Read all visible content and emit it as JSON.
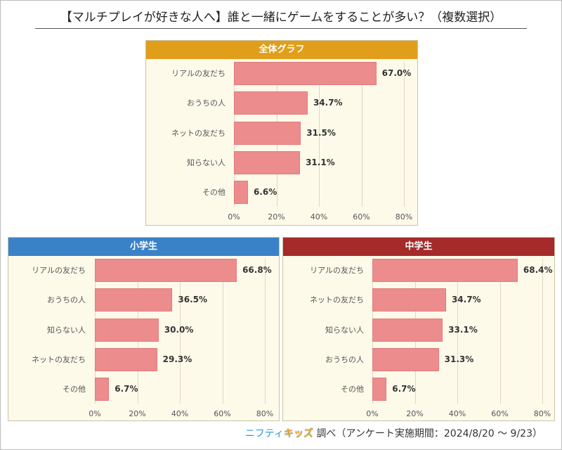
{
  "title": "【マルチプレイが好きな人へ】誰と一緒にゲームをすることが多い？（複数選択）",
  "footer": {
    "brand_a": "ニフティ",
    "brand_b": "キッズ",
    "text": "調べ（アンケート実施期間：2024/8/20 ～ 9/23）"
  },
  "chart_data": [
    {
      "type": "bar",
      "orientation": "horizontal",
      "title": "全体グラフ",
      "header_color": "#e09e1a",
      "xlim": [
        0,
        80
      ],
      "ticks": [
        "0%",
        "20%",
        "40%",
        "60%",
        "80%"
      ],
      "grid": true,
      "categories": [
        "リアルの友だち",
        "おうちの人",
        "ネットの友だち",
        "知らない人",
        "その他"
      ],
      "values": [
        67.0,
        34.7,
        31.5,
        31.1,
        6.6
      ],
      "labels": [
        "67.0%",
        "34.7%",
        "31.5%",
        "31.1%",
        "6.6%"
      ]
    },
    {
      "type": "bar",
      "orientation": "horizontal",
      "title": "小学生",
      "header_color": "#3a82c8",
      "xlim": [
        0,
        80
      ],
      "ticks": [
        "0%",
        "20%",
        "40%",
        "60%",
        "80%"
      ],
      "grid": true,
      "categories": [
        "リアルの友だち",
        "おうちの人",
        "知らない人",
        "ネットの友だち",
        "その他"
      ],
      "values": [
        66.8,
        36.5,
        30.0,
        29.3,
        6.7
      ],
      "labels": [
        "66.8%",
        "36.5%",
        "30.0%",
        "29.3%",
        "6.7%"
      ]
    },
    {
      "type": "bar",
      "orientation": "horizontal",
      "title": "中学生",
      "header_color": "#a52a2a",
      "xlim": [
        0,
        80
      ],
      "ticks": [
        "0%",
        "20%",
        "40%",
        "60%",
        "80%"
      ],
      "grid": true,
      "categories": [
        "リアルの友だち",
        "ネットの友だち",
        "知らない人",
        "おうちの人",
        "その他"
      ],
      "values": [
        68.4,
        34.7,
        33.1,
        31.3,
        6.7
      ],
      "labels": [
        "68.4%",
        "34.7%",
        "33.1%",
        "31.3%",
        "6.7%"
      ]
    }
  ]
}
